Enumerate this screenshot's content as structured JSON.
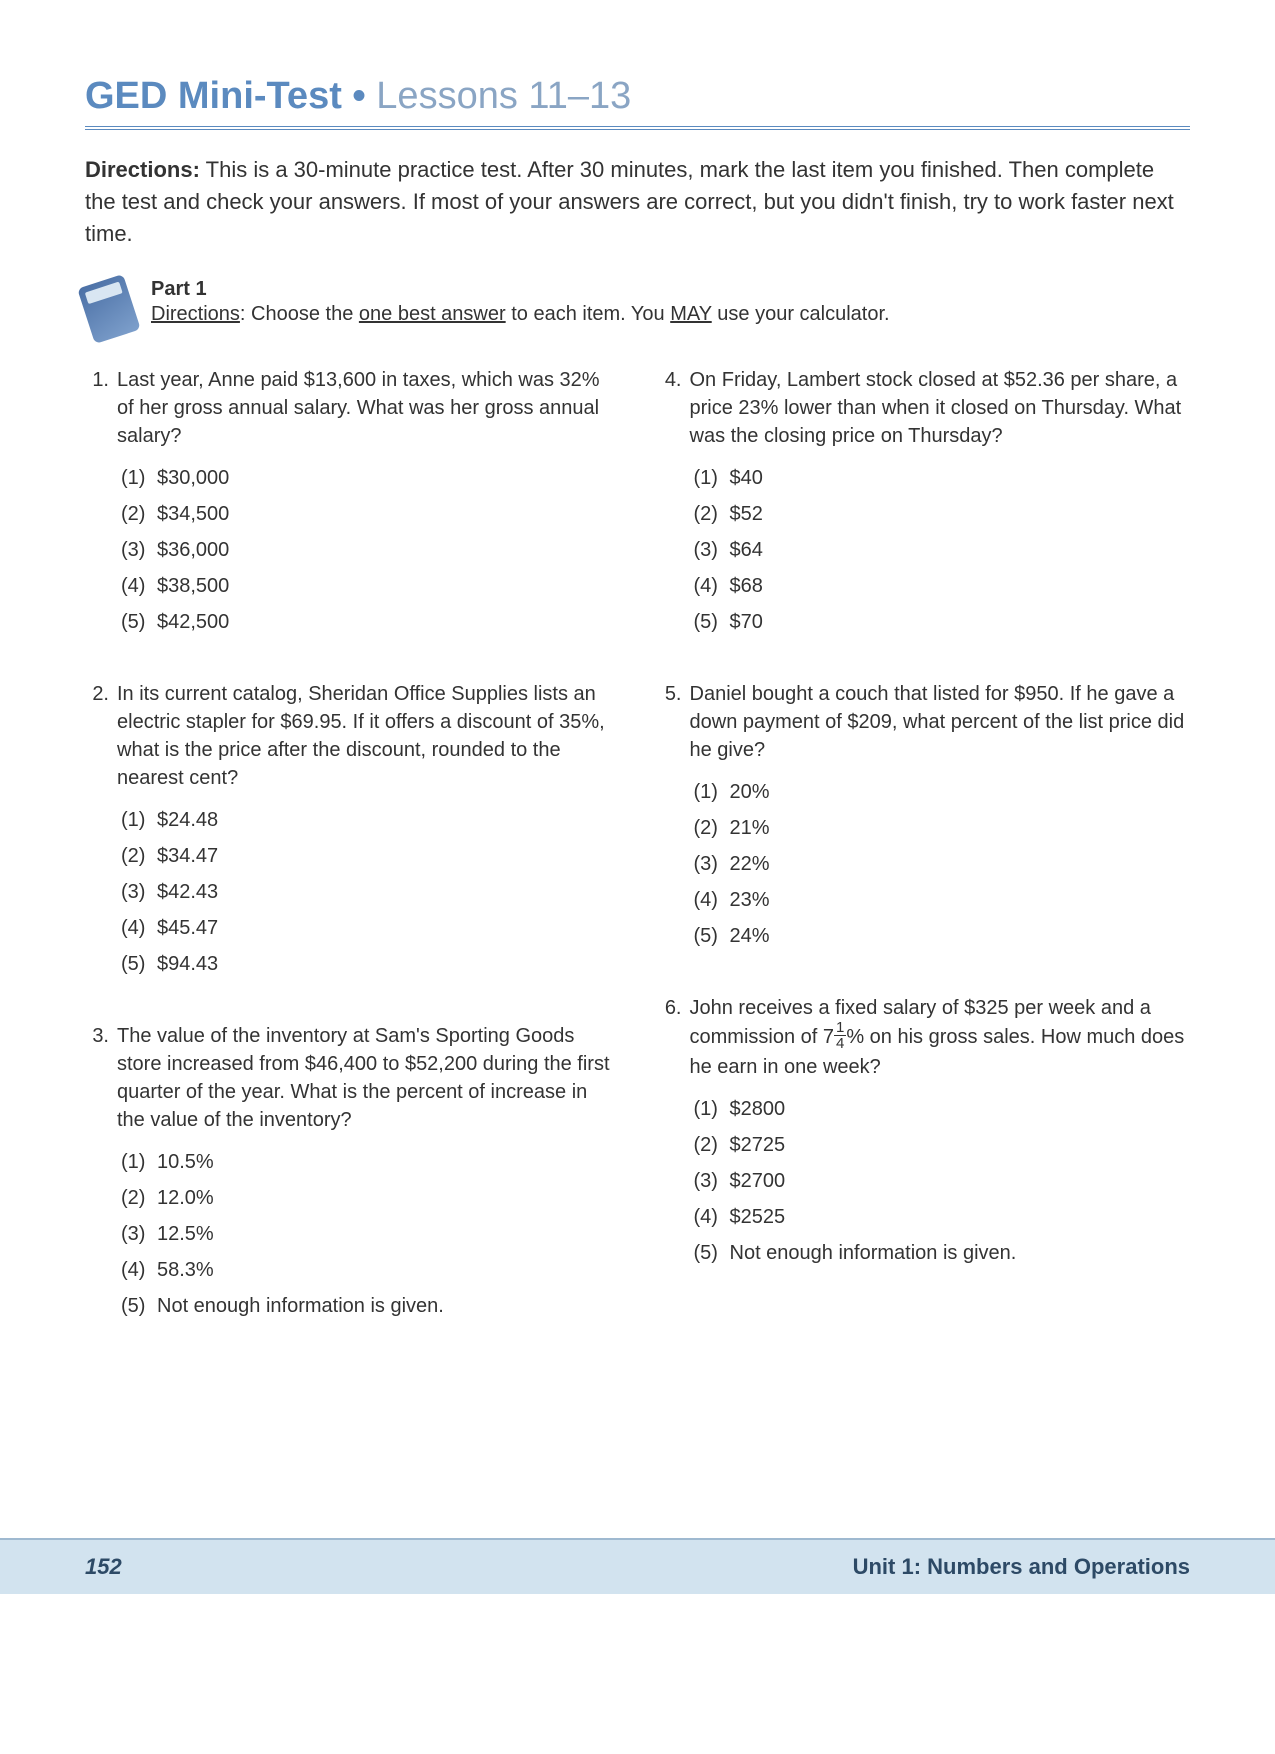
{
  "header": {
    "title_strong": "GED Mini-Test",
    "bullet": "•",
    "title_light": "Lessons 11–13"
  },
  "directions": {
    "lead": "Directions:",
    "text": "This is a 30-minute practice test. After 30 minutes, mark the last item you finished. Then complete the test and check your answers. If most of your answers are correct, but you didn't finish, try to work faster next time."
  },
  "part": {
    "label": "Part 1",
    "dir_lead": "Directions",
    "dir_mid1": ": Choose the ",
    "underline1": "one best answer",
    "dir_mid2": " to each item. You ",
    "underline2": "MAY",
    "dir_tail": " use your calculator."
  },
  "questions_left": [
    {
      "num": "1.",
      "stem": "Last year, Anne paid $13,600 in taxes, which was 32% of her gross annual salary. What was her gross annual salary?",
      "choices": [
        "$30,000",
        "$34,500",
        "$36,000",
        "$38,500",
        "$42,500"
      ]
    },
    {
      "num": "2.",
      "stem": "In its current catalog, Sheridan Office Supplies lists an electric stapler for $69.95. If it offers a discount of 35%, what is the price after the discount, rounded to the nearest cent?",
      "choices": [
        "$24.48",
        "$34.47",
        "$42.43",
        "$45.47",
        "$94.43"
      ]
    },
    {
      "num": "3.",
      "stem": "The value of the inventory at Sam's Sporting Goods store increased from $46,400 to $52,200 during the first quarter of the year. What is the percent of increase in the value of the inventory?",
      "choices": [
        "10.5%",
        "12.0%",
        "12.5%",
        "58.3%",
        "Not enough information is given."
      ]
    }
  ],
  "questions_right": [
    {
      "num": "4.",
      "stem": "On Friday, Lambert stock closed at $52.36 per share, a price 23% lower than when it closed on Thursday. What was the closing price on Thursday?",
      "choices": [
        "$40",
        "$52",
        "$64",
        "$68",
        "$70"
      ]
    },
    {
      "num": "5.",
      "stem": "Daniel bought a couch that listed for $950. If he gave a down payment of $209, what percent of the list price did he give?",
      "choices": [
        "20%",
        "21%",
        "22%",
        "23%",
        "24%"
      ]
    },
    {
      "num": "6.",
      "stem_pre": "John receives a fixed salary of $325 per week and a commission of 7",
      "frac_n": "1",
      "frac_d": "4",
      "stem_post": "% on his gross sales. How much does he earn in one week?",
      "choices": [
        "$2800",
        "$2725",
        "$2700",
        "$2525",
        "Not enough information is given."
      ]
    }
  ],
  "footer": {
    "page": "152",
    "unit": "Unit 1: Numbers and Operations"
  },
  "choice_labels": [
    "(1)",
    "(2)",
    "(3)",
    "(4)",
    "(5)"
  ]
}
